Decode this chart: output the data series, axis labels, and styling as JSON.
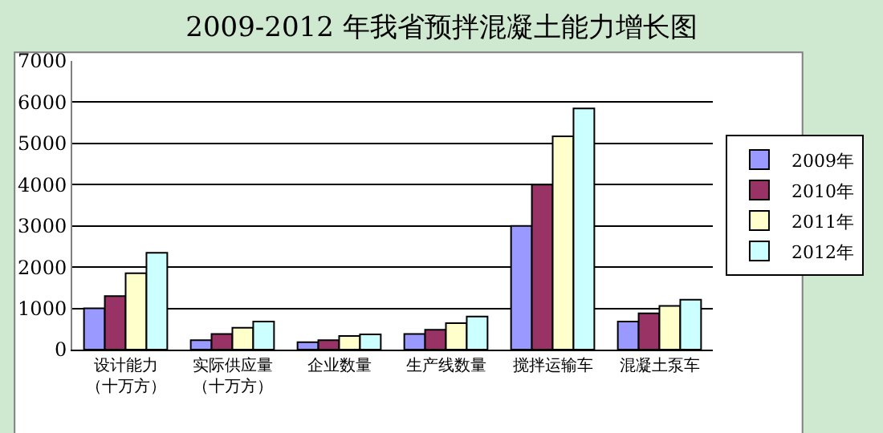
{
  "chart_data": {
    "type": "bar",
    "title": "2009-2012 年我省预拌混凝土能力增长图",
    "categories": [
      "设计能力（十万方）",
      "实际供应量（十万方）",
      "企业数量",
      "生产线数量",
      "搅拌运输车",
      "混凝土泵车"
    ],
    "series": [
      {
        "name": "2009年",
        "color": "#9999ff",
        "values": [
          1000,
          230,
          180,
          380,
          3000,
          680
        ]
      },
      {
        "name": "2010年",
        "color": "#993366",
        "values": [
          1300,
          380,
          230,
          480,
          4000,
          880
        ]
      },
      {
        "name": "2011年",
        "color": "#ffffcc",
        "values": [
          1850,
          530,
          330,
          640,
          5170,
          1060
        ]
      },
      {
        "name": "2012年",
        "color": "#ccffff",
        "values": [
          2350,
          680,
          370,
          800,
          5850,
          1210
        ]
      }
    ],
    "ylim": [
      0,
      7000
    ],
    "yticks": [
      0,
      1000,
      2000,
      3000,
      4000,
      5000,
      6000,
      7000
    ],
    "grid": "y",
    "legend": "right"
  }
}
